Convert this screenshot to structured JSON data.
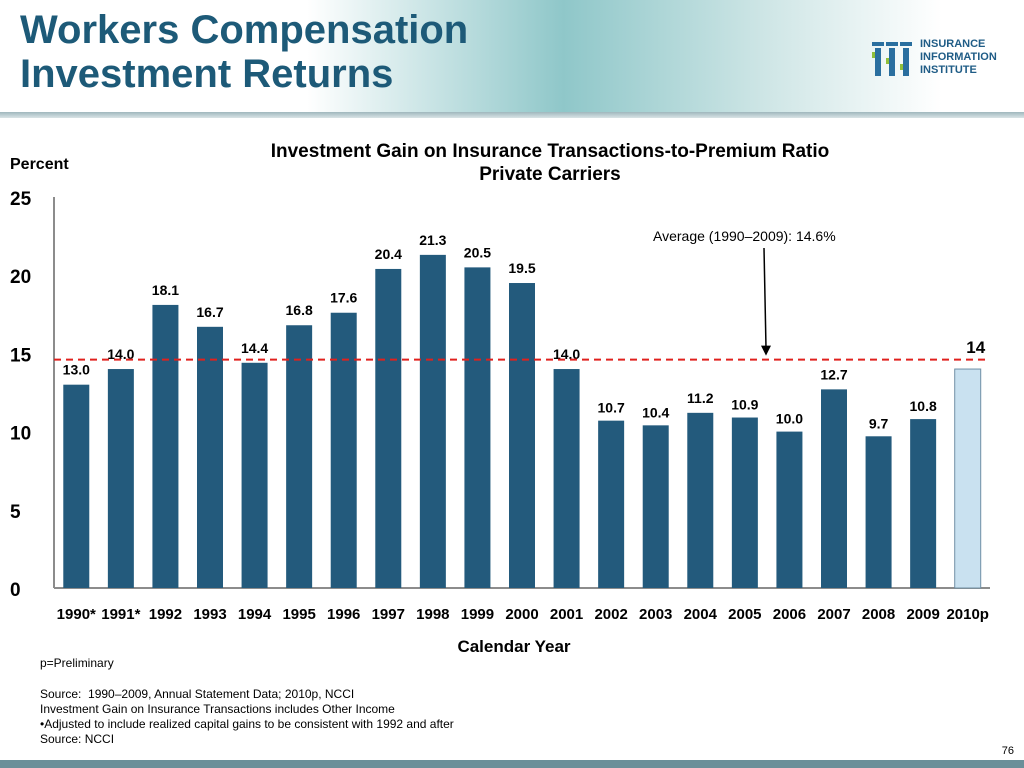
{
  "slide": {
    "title_line1": "Workers Compensation",
    "title_line2": "Investment Returns",
    "page_number": "76"
  },
  "logo": {
    "line1": "INSURANCE",
    "line2": "INFORMATION",
    "line3": "INSTITUTE"
  },
  "chart_data": {
    "type": "bar",
    "title": "Investment Gain on Insurance Transactions-to-Premium Ratio",
    "subtitle": "Private Carriers",
    "ylabel": "Percent",
    "xlabel": "Calendar Year",
    "ylim": [
      0,
      25
    ],
    "yticks": [
      0,
      5,
      10,
      15,
      20,
      25
    ],
    "grid": false,
    "categories": [
      "1990*",
      "1991*",
      "1992",
      "1993",
      "1994",
      "1995",
      "1996",
      "1997",
      "1998",
      "1999",
      "2000",
      "2001",
      "2002",
      "2003",
      "2004",
      "2005",
      "2006",
      "2007",
      "2008",
      "2009",
      "2010p"
    ],
    "values": [
      13.0,
      14.0,
      18.1,
      16.7,
      14.4,
      16.8,
      17.6,
      20.4,
      21.3,
      20.5,
      19.5,
      14.0,
      10.7,
      10.4,
      11.2,
      10.9,
      10.0,
      12.7,
      9.7,
      10.8,
      14
    ],
    "value_labels": [
      "13.0",
      "14.0",
      "18.1",
      "16.7",
      "14.4",
      "16.8",
      "17.6",
      "20.4",
      "21.3",
      "20.5",
      "19.5",
      "14.0",
      "10.7",
      "10.4",
      "11.2",
      "10.9",
      "10.0",
      "12.7",
      "9.7",
      "10.8",
      "14"
    ],
    "highlight_index": 20,
    "average_line": {
      "value": 14.6,
      "label": "Average (1990–2009): 14.6%"
    },
    "colors": {
      "bar": "#235a7c",
      "bar_highlight": "#c9e1f0",
      "bar_highlight_border": "#6f8fa5",
      "average_line": "#e0211d",
      "axis": "#8c8c8c"
    }
  },
  "footer": {
    "note": "p=Preliminary",
    "source_line": "Source:  1990–2009, Annual Statement Data; 2010p, NCCI",
    "includes_line": "Investment Gain on Insurance Transactions includes Other Income",
    "adjusted_line": "•Adjusted to include realized capital gains to be consistent with 1992 and after",
    "source_ncci": "Source: NCCI"
  }
}
